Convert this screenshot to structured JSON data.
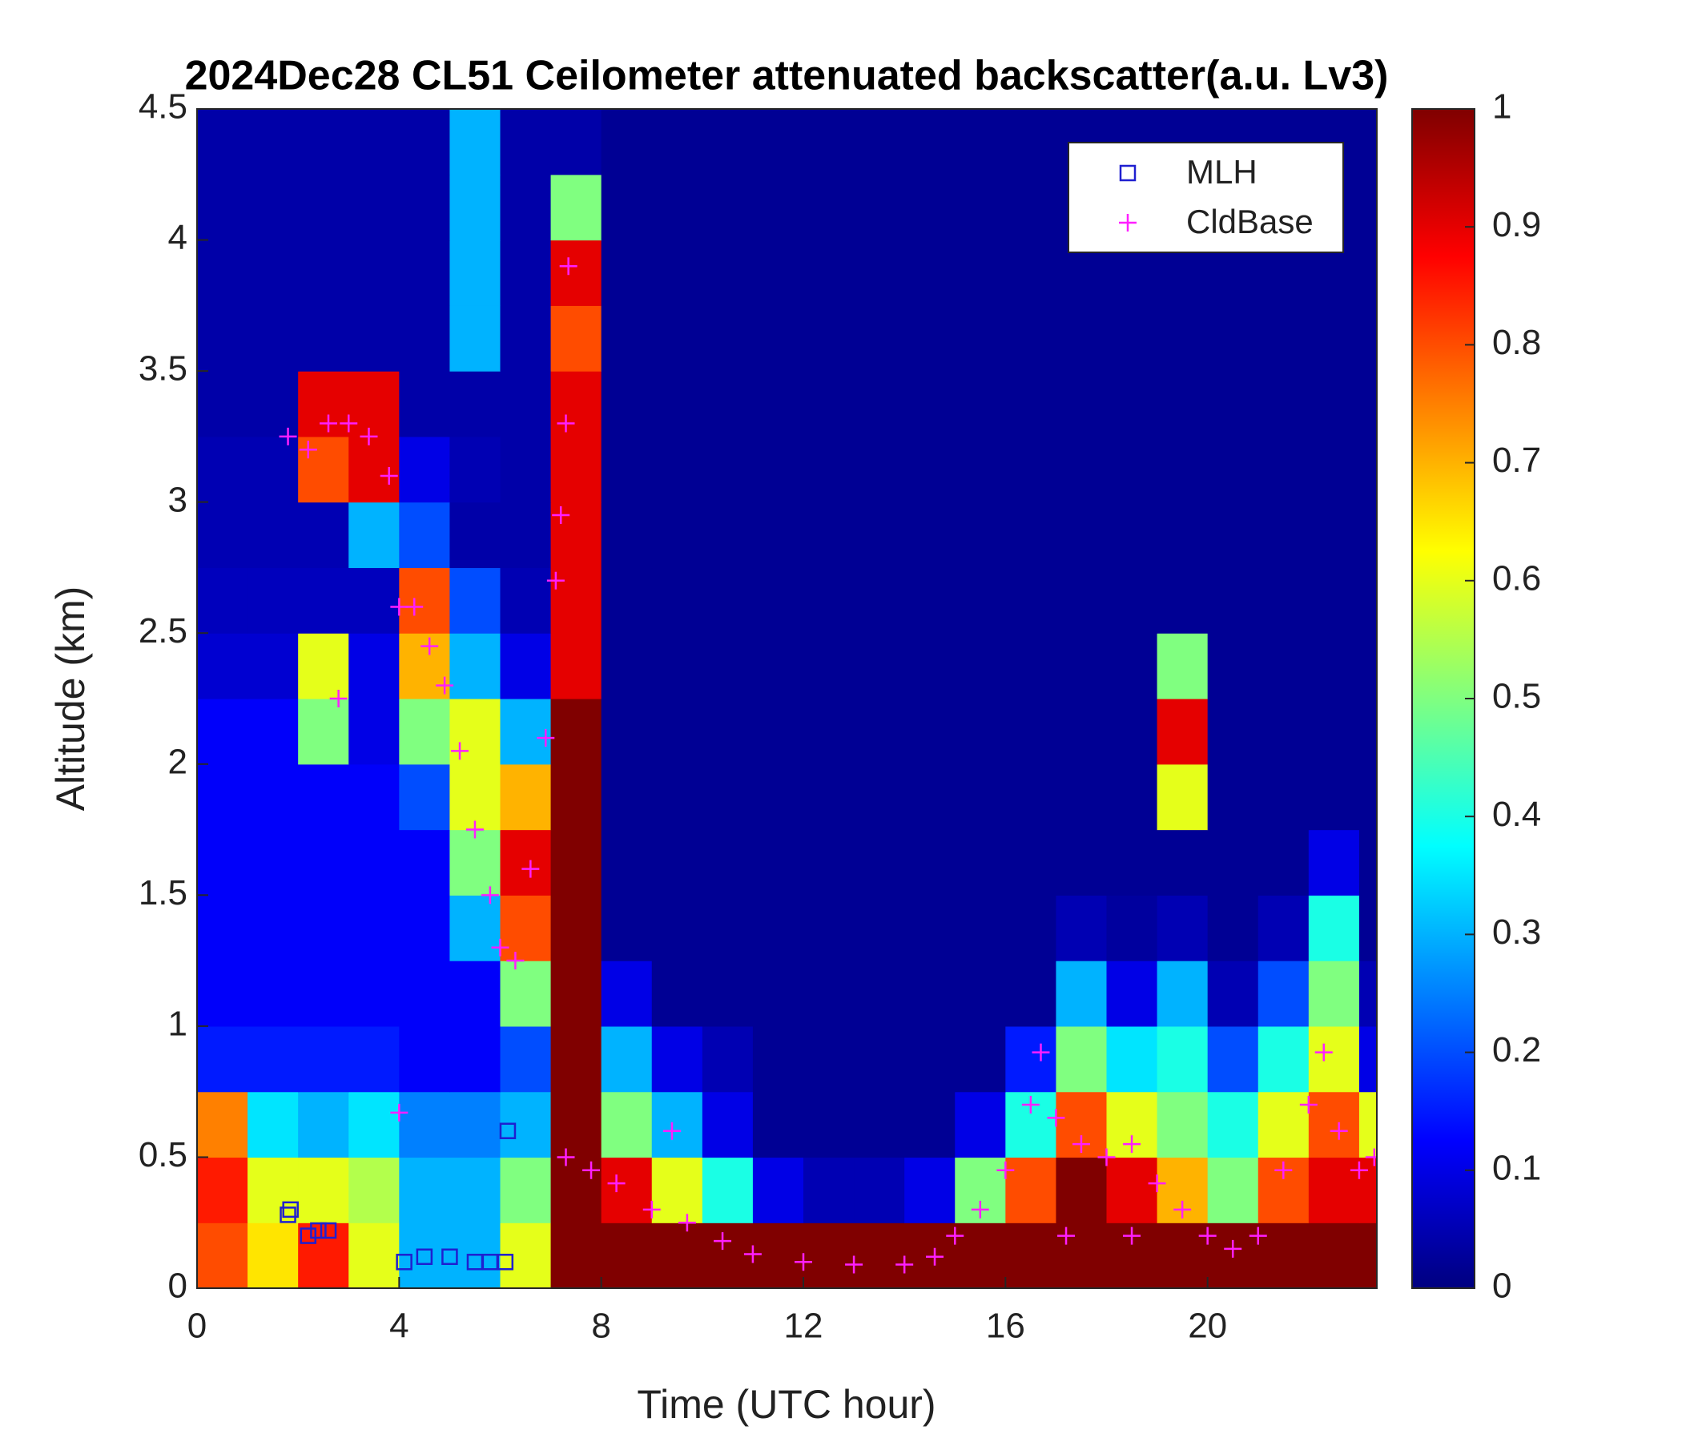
{
  "chart_data": {
    "type": "heatmap",
    "title": "2024Dec28 CL51 Ceilometer attenuated backscatter(a.u. Lv3)",
    "xlabel": "Time (UTC hour)",
    "ylabel": "Altitude (km)",
    "xlim": [
      0,
      23.35
    ],
    "ylim": [
      0,
      4.5
    ],
    "xticks": [
      0,
      4,
      8,
      12,
      16,
      20
    ],
    "yticks": [
      0,
      0.5,
      1,
      1.5,
      2,
      2.5,
      3,
      3.5,
      4,
      4.5
    ],
    "xbins": [
      0,
      1,
      2,
      3,
      4,
      5,
      6,
      7,
      8,
      9,
      10,
      11,
      12,
      13,
      14,
      15,
      16,
      17,
      18,
      19,
      20,
      21,
      22,
      23,
      24
    ],
    "ybins": [
      0,
      0.25,
      0.5,
      0.75,
      1,
      1.25,
      1.5,
      1.75,
      2,
      2.25,
      2.5,
      2.75,
      3,
      3.25,
      3.5,
      3.75,
      4,
      4.25,
      4.5
    ],
    "z": [
      [
        0.8,
        0.65,
        0.85,
        0.6,
        0.3,
        0.3,
        0.6,
        1,
        1,
        1,
        1,
        1,
        1,
        1,
        1,
        1,
        1,
        1,
        1,
        1,
        1,
        1,
        1,
        1
      ],
      [
        0.85,
        0.6,
        0.6,
        0.55,
        0.3,
        0.3,
        0.5,
        1,
        0.9,
        0.6,
        0.4,
        0.1,
        0.05,
        0.05,
        0.1,
        0.5,
        0.8,
        1,
        0.9,
        0.7,
        0.5,
        0.8,
        0.9,
        0.9
      ],
      [
        0.75,
        0.35,
        0.3,
        0.35,
        0.25,
        0.25,
        0.3,
        1,
        0.5,
        0.3,
        0.1,
        0.02,
        0.02,
        0.02,
        0.02,
        0.1,
        0.4,
        0.8,
        0.6,
        0.5,
        0.4,
        0.6,
        0.8,
        0.6
      ],
      [
        0.15,
        0.15,
        0.15,
        0.15,
        0.12,
        0.12,
        0.2,
        1,
        0.3,
        0.1,
        0.05,
        0.02,
        0.02,
        0.02,
        0.02,
        0.02,
        0.15,
        0.5,
        0.35,
        0.4,
        0.2,
        0.4,
        0.6,
        0.1
      ],
      [
        0.12,
        0.12,
        0.12,
        0.12,
        0.12,
        0.12,
        0.5,
        1,
        0.1,
        0.02,
        0.02,
        0.02,
        0.02,
        0.02,
        0.02,
        0.02,
        0.02,
        0.3,
        0.1,
        0.3,
        0.05,
        0.2,
        0.5,
        0.05
      ],
      [
        0.12,
        0.12,
        0.12,
        0.12,
        0.12,
        0.3,
        0.8,
        1,
        0.02,
        0.02,
        0.02,
        0.02,
        0.02,
        0.02,
        0.02,
        0.02,
        0.02,
        0.05,
        0.03,
        0.05,
        0.02,
        0.05,
        0.4,
        0.02
      ],
      [
        0.12,
        0.12,
        0.12,
        0.12,
        0.12,
        0.5,
        0.9,
        1,
        0.02,
        0.02,
        0.02,
        0.02,
        0.02,
        0.02,
        0.02,
        0.02,
        0.02,
        0.02,
        0.02,
        0.02,
        0.02,
        0.02,
        0.1,
        0.02
      ],
      [
        0.12,
        0.12,
        0.12,
        0.12,
        0.2,
        0.6,
        0.7,
        1,
        0.02,
        0.02,
        0.02,
        0.02,
        0.02,
        0.02,
        0.02,
        0.02,
        0.02,
        0.02,
        0.02,
        0.6,
        0.02,
        0.02,
        0.02,
        0.02
      ],
      [
        0.12,
        0.12,
        0.5,
        0.1,
        0.5,
        0.6,
        0.3,
        1,
        0.02,
        0.02,
        0.02,
        0.02,
        0.02,
        0.02,
        0.02,
        0.02,
        0.02,
        0.02,
        0.02,
        0.9,
        0.02,
        0.02,
        0.02,
        0.02
      ],
      [
        0.08,
        0.08,
        0.6,
        0.1,
        0.7,
        0.3,
        0.1,
        0.9,
        0.02,
        0.02,
        0.02,
        0.02,
        0.02,
        0.02,
        0.02,
        0.02,
        0.02,
        0.02,
        0.02,
        0.5,
        0.02,
        0.02,
        0.02,
        0.02
      ],
      [
        0.06,
        0.06,
        0.06,
        0.06,
        0.8,
        0.2,
        0.05,
        0.9,
        0.02,
        0.02,
        0.02,
        0.02,
        0.02,
        0.02,
        0.02,
        0.02,
        0.02,
        0.02,
        0.02,
        0.02,
        0.02,
        0.02,
        0.02,
        0.02
      ],
      [
        0.05,
        0.05,
        0.05,
        0.3,
        0.2,
        0.04,
        0.04,
        0.9,
        0.02,
        0.02,
        0.02,
        0.02,
        0.02,
        0.02,
        0.02,
        0.02,
        0.02,
        0.02,
        0.02,
        0.02,
        0.02,
        0.02,
        0.02,
        0.02
      ],
      [
        0.05,
        0.05,
        0.8,
        0.9,
        0.1,
        0.05,
        0.04,
        0.9,
        0.02,
        0.02,
        0.02,
        0.02,
        0.02,
        0.02,
        0.02,
        0.02,
        0.02,
        0.02,
        0.02,
        0.02,
        0.02,
        0.02,
        0.02,
        0.02
      ],
      [
        0.04,
        0.04,
        0.9,
        0.9,
        0.04,
        0.04,
        0.04,
        0.9,
        0.02,
        0.02,
        0.02,
        0.02,
        0.02,
        0.02,
        0.02,
        0.02,
        0.02,
        0.02,
        0.02,
        0.02,
        0.02,
        0.02,
        0.02,
        0.02
      ],
      [
        0.04,
        0.04,
        0.04,
        0.04,
        0.04,
        0.3,
        0.04,
        0.8,
        0.02,
        0.02,
        0.02,
        0.02,
        0.02,
        0.02,
        0.02,
        0.02,
        0.02,
        0.02,
        0.02,
        0.02,
        0.02,
        0.02,
        0.02,
        0.02
      ],
      [
        0.04,
        0.04,
        0.04,
        0.04,
        0.04,
        0.3,
        0.04,
        0.9,
        0.02,
        0.02,
        0.02,
        0.02,
        0.02,
        0.02,
        0.02,
        0.02,
        0.02,
        0.02,
        0.02,
        0.02,
        0.02,
        0.02,
        0.02,
        0.02
      ],
      [
        0.04,
        0.04,
        0.04,
        0.04,
        0.04,
        0.3,
        0.04,
        0.5,
        0.02,
        0.02,
        0.02,
        0.02,
        0.02,
        0.02,
        0.02,
        0.02,
        0.02,
        0.02,
        0.02,
        0.02,
        0.02,
        0.02,
        0.02,
        0.02
      ],
      [
        0.04,
        0.04,
        0.04,
        0.04,
        0.04,
        0.3,
        0.04,
        0.04,
        0.02,
        0.02,
        0.02,
        0.02,
        0.02,
        0.02,
        0.02,
        0.02,
        0.02,
        0.02,
        0.02,
        0.02,
        0.02,
        0.02,
        0.02,
        0.02
      ]
    ],
    "colormap": "jet",
    "clim": [
      0,
      1
    ],
    "cticks": [
      0,
      0.1,
      0.2,
      0.3,
      0.4,
      0.5,
      0.6,
      0.7,
      0.8,
      0.9,
      1
    ],
    "legend": "upper right",
    "series": [
      {
        "name": "MLH",
        "marker": "square",
        "color": "#1f1fd0",
        "x": [
          1.8,
          1.85,
          2.2,
          2.4,
          2.6,
          4.1,
          4.5,
          5,
          5.5,
          5.8,
          6.1,
          6.15
        ],
        "y": [
          0.28,
          0.3,
          0.2,
          0.22,
          0.22,
          0.1,
          0.12,
          0.12,
          0.1,
          0.1,
          0.1,
          0.6
        ]
      },
      {
        "name": "CldBase",
        "marker": "plus",
        "color": "#ff1fff",
        "x": [
          1.8,
          2.2,
          2.6,
          3,
          3.4,
          3.8,
          4,
          4.3,
          4.6,
          4.9,
          5.2,
          5.5,
          5.8,
          6,
          6.3,
          6.6,
          6.9,
          7.1,
          7.2,
          7.3,
          7.35,
          4,
          7.3,
          7.8,
          8.3,
          9,
          9.7,
          10.4,
          11,
          12,
          13,
          14,
          14.6,
          15,
          15.5,
          16,
          16.5,
          16.7,
          17,
          17.5,
          18,
          18.5,
          19,
          19.5,
          20,
          20.5,
          21,
          21.5,
          22,
          22.3,
          22.6,
          23,
          23.3,
          2.8,
          9.4,
          17.2,
          18.5
        ],
        "y": [
          3.25,
          3.2,
          3.3,
          3.3,
          3.25,
          3.1,
          2.6,
          2.6,
          2.45,
          2.3,
          2.05,
          1.75,
          1.5,
          1.3,
          1.25,
          1.6,
          2.1,
          2.7,
          2.95,
          3.3,
          3.9,
          0.67,
          0.5,
          0.45,
          0.4,
          0.3,
          0.25,
          0.18,
          0.13,
          0.1,
          0.09,
          0.09,
          0.12,
          0.2,
          0.3,
          0.45,
          0.7,
          0.9,
          0.65,
          0.55,
          0.5,
          0.55,
          0.4,
          0.3,
          0.2,
          0.15,
          0.2,
          0.45,
          0.7,
          0.9,
          0.6,
          0.45,
          0.5,
          2.25,
          0.6,
          0.2,
          0.2
        ]
      }
    ]
  }
}
